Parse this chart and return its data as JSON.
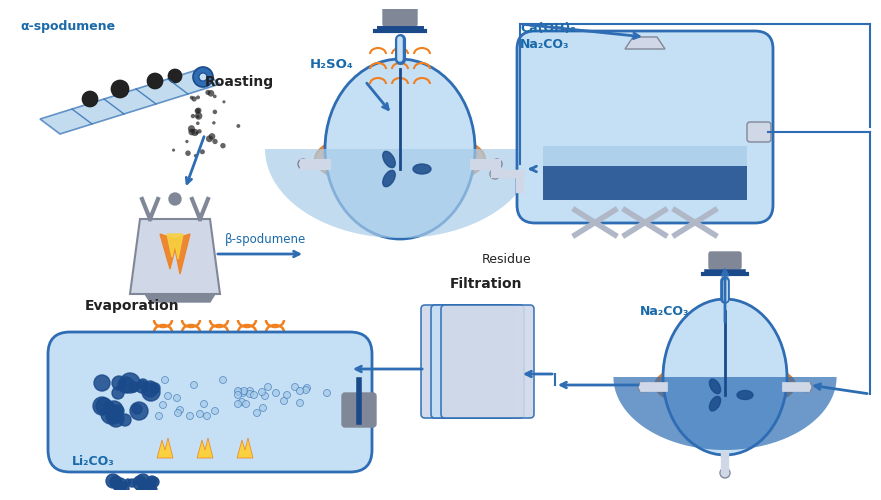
{
  "title": "",
  "bg_color": "#ffffff",
  "blue_dark": "#1a4a8a",
  "blue_mid": "#2e6db4",
  "blue_light": "#7eb6e8",
  "blue_pale": "#c5dff5",
  "blue_lighter": "#a8cce8",
  "orange": "#f0a060",
  "orange_dark": "#e08030",
  "gray": "#b0b8c8",
  "gray_light": "#d0d8e8",
  "gray_dark": "#808898",
  "flame_orange": "#f08020",
  "flame_yellow": "#f8d040",
  "text_blue": "#1a6aaa",
  "text_dark": "#222222",
  "labels": {
    "alpha_spodumene": "α-spodumene",
    "roasting": "Roasting",
    "h2so4": "H₂SO₄",
    "beta_spodumene": "β-spodumene",
    "residue": "Residue",
    "ca_oh2": "Ca(OH)₂",
    "na2co3_top": "Na₂CO₃",
    "na2co3_right": "Na₂CO₃",
    "filtration": "Filtration",
    "evaporation": "Evaporation",
    "li2co3": "Li₂CO₃"
  }
}
